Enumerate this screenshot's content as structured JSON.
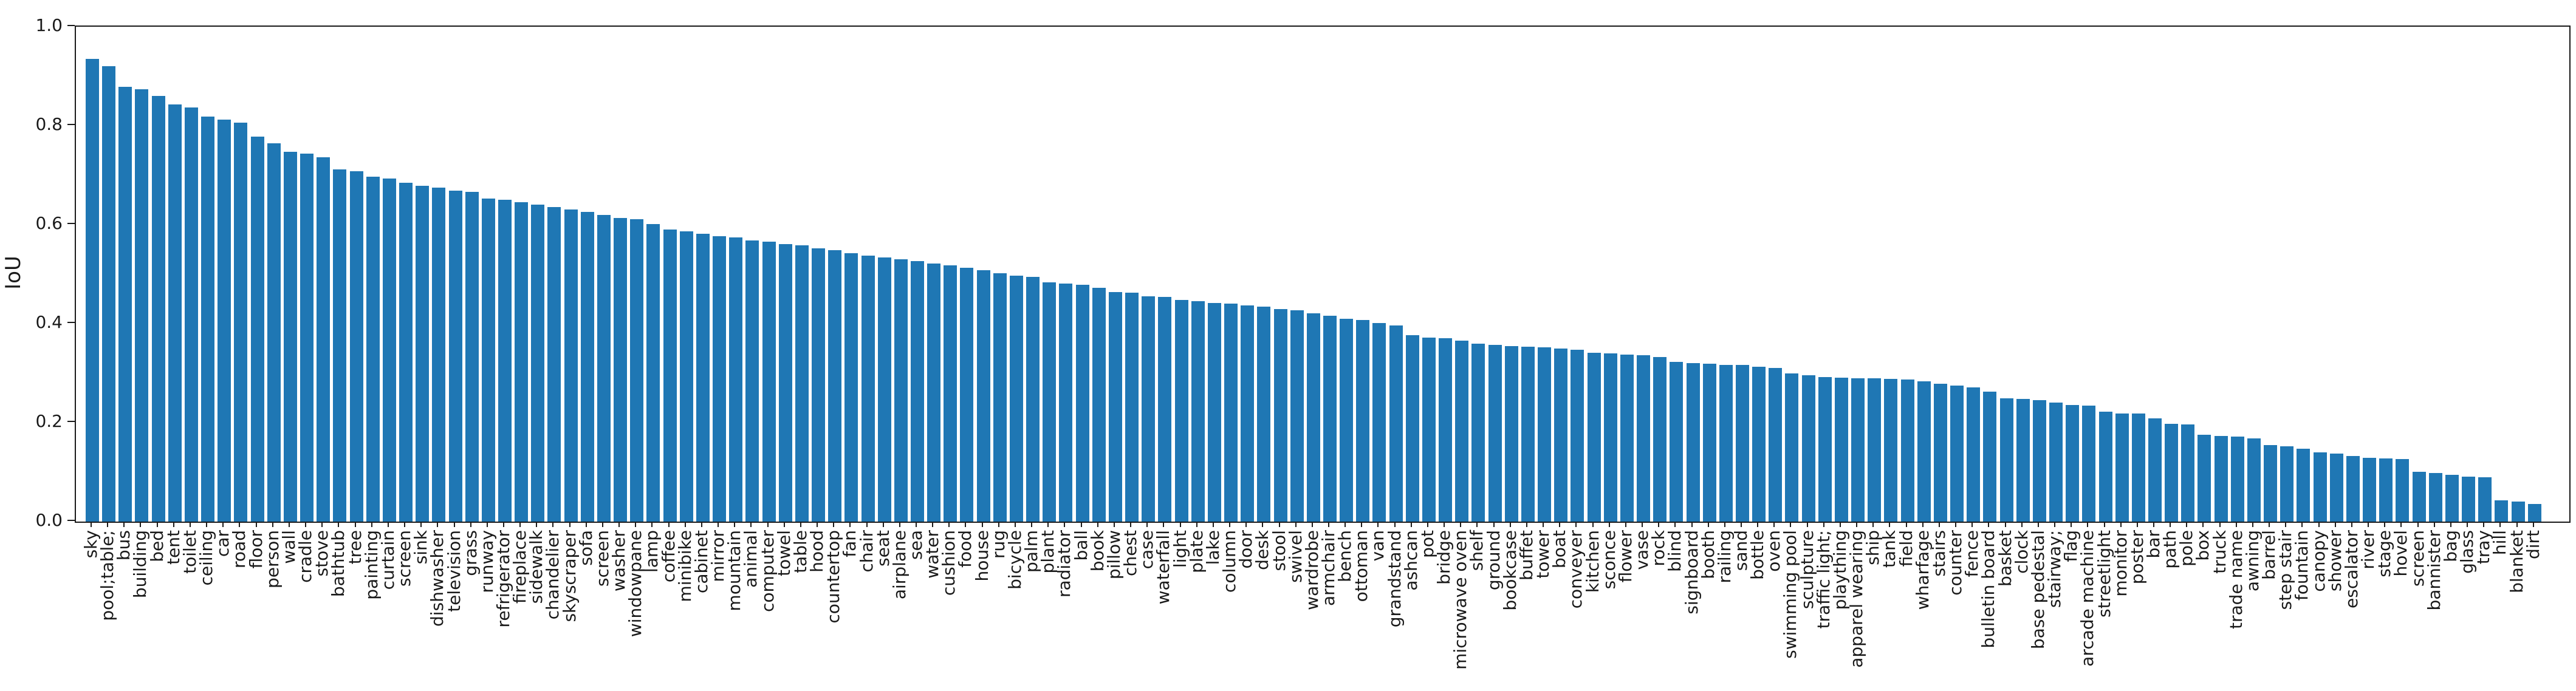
{
  "chart_data": {
    "type": "bar",
    "title": "",
    "xlabel": "",
    "ylabel": "IoU",
    "ylim": [
      0.0,
      1.0
    ],
    "yticks": [
      "0.0",
      "0.2",
      "0.4",
      "0.6",
      "0.8",
      "1.0"
    ],
    "grid": false,
    "legend": "none",
    "bar_color": "#1f77b4",
    "axis_color": "#1a1a1a",
    "categories": [
      "sky",
      "pool;table;",
      "bus",
      "building",
      "bed",
      "tent",
      "toilet",
      "ceiling",
      "car",
      "road",
      "floor",
      "person",
      "wall",
      "cradle",
      "stove",
      "bathtub",
      "tree",
      "painting",
      "curtain",
      "screen",
      "sink",
      "dishwasher",
      "television",
      "grass",
      "runway",
      "refrigerator",
      "fireplace",
      "sidewalk",
      "chandelier",
      "skyscraper",
      "sofa",
      "screen",
      "washer",
      "windowpane",
      "lamp",
      "coffee",
      "minibike",
      "cabinet",
      "mirror",
      "mountain",
      "animal",
      "computer",
      "towel",
      "table",
      "hood",
      "countertop",
      "fan",
      "chair",
      "seat",
      "airplane",
      "sea",
      "water",
      "cushion",
      "food",
      "house",
      "rug",
      "bicycle",
      "palm",
      "plant",
      "radiator",
      "ball",
      "book",
      "pillow",
      "chest",
      "case",
      "waterfall",
      "light",
      "plate",
      "lake",
      "column",
      "door",
      "desk",
      "stool",
      "swivel",
      "wardrobe",
      "armchair",
      "bench",
      "ottoman",
      "van",
      "grandstand",
      "ashcan",
      "pot",
      "bridge",
      "microwave oven",
      "shelf",
      "ground",
      "bookcase",
      "buffet",
      "tower",
      "boat",
      "conveyer",
      "kitchen",
      "sconce",
      "flower",
      "vase",
      "rock",
      "blind",
      "signboard",
      "booth",
      "railing",
      "sand",
      "bottle",
      "oven",
      "swimming pool",
      "sculpture",
      "traffic light;",
      "plaything",
      "apparel wearing",
      "ship",
      "tank",
      "field",
      "wharfage",
      "stairs",
      "counter",
      "fence",
      "bulletin board",
      "basket",
      "clock",
      "base pedestal",
      "stairway;",
      "flag",
      "arcade machine",
      "streetlight",
      "monitor",
      "poster",
      "bar",
      "path",
      "pole",
      "box",
      "truck",
      "trade name",
      "awning",
      "barrel",
      "step stair",
      "fountain",
      "canopy",
      "shower",
      "escalator",
      "river",
      "stage",
      "hovel",
      "screen",
      "bannister",
      "bag",
      "glass",
      "tray",
      "hill",
      "blanket",
      "dirt"
    ],
    "values": [
      0.935,
      0.92,
      0.878,
      0.874,
      0.86,
      0.843,
      0.837,
      0.818,
      0.812,
      0.806,
      0.778,
      0.764,
      0.747,
      0.744,
      0.736,
      0.712,
      0.708,
      0.697,
      0.693,
      0.685,
      0.679,
      0.675,
      0.669,
      0.666,
      0.653,
      0.65,
      0.645,
      0.641,
      0.636,
      0.631,
      0.626,
      0.62,
      0.614,
      0.611,
      0.601,
      0.59,
      0.586,
      0.582,
      0.577,
      0.574,
      0.568,
      0.566,
      0.561,
      0.558,
      0.552,
      0.548,
      0.542,
      0.538,
      0.534,
      0.53,
      0.526,
      0.522,
      0.518,
      0.513,
      0.508,
      0.502,
      0.497,
      0.494,
      0.483,
      0.481,
      0.478,
      0.473,
      0.464,
      0.463,
      0.455,
      0.454,
      0.448,
      0.445,
      0.442,
      0.441,
      0.437,
      0.434,
      0.429,
      0.427,
      0.421,
      0.416,
      0.41,
      0.407,
      0.401,
      0.396,
      0.377,
      0.372,
      0.371,
      0.366,
      0.36,
      0.357,
      0.354,
      0.353,
      0.352,
      0.35,
      0.347,
      0.341,
      0.34,
      0.338,
      0.336,
      0.333,
      0.323,
      0.32,
      0.319,
      0.317,
      0.316,
      0.313,
      0.311,
      0.299,
      0.296,
      0.292,
      0.291,
      0.29,
      0.289,
      0.288,
      0.287,
      0.283,
      0.278,
      0.275,
      0.271,
      0.262,
      0.249,
      0.248,
      0.245,
      0.241,
      0.236,
      0.234,
      0.222,
      0.219,
      0.218,
      0.209,
      0.198,
      0.196,
      0.176,
      0.173,
      0.172,
      0.168,
      0.154,
      0.152,
      0.147,
      0.14,
      0.137,
      0.132,
      0.129,
      0.128,
      0.126,
      0.101,
      0.098,
      0.094,
      0.091,
      0.09,
      0.043,
      0.04,
      0.036
    ]
  }
}
